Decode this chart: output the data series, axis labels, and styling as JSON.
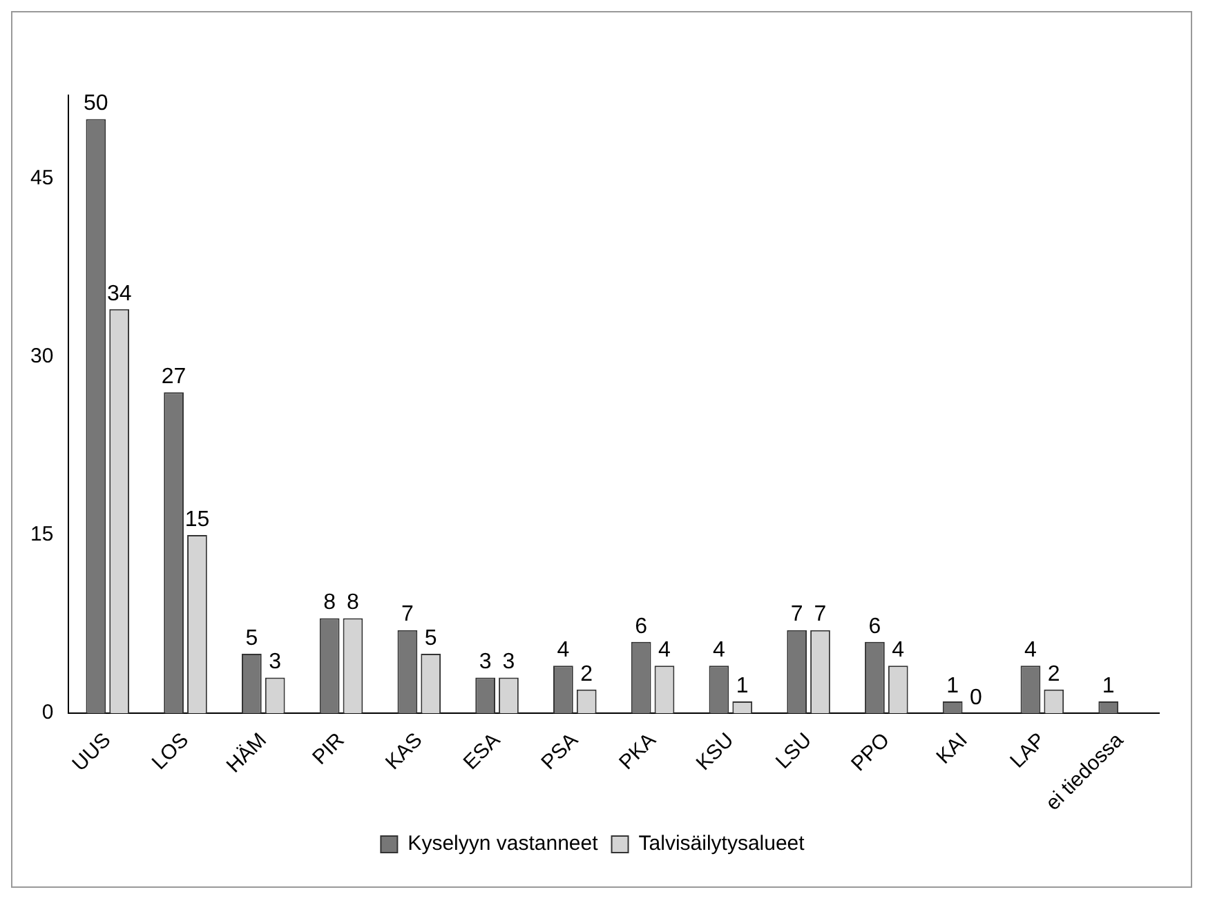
{
  "chart_data": {
    "type": "bar",
    "categories": [
      "UUS",
      "LOS",
      "HÄM",
      "PIR",
      "KAS",
      "ESA",
      "PSA",
      "PKA",
      "KSU",
      "LSU",
      "PPO",
      "KAI",
      "LAP",
      "ei tiedossa"
    ],
    "series": [
      {
        "name": "Kyselyyn vastanneet",
        "color": "#777777",
        "values": [
          50,
          27,
          5,
          8,
          7,
          3,
          4,
          6,
          4,
          7,
          6,
          1,
          4,
          1
        ]
      },
      {
        "name": "Talvisäilytysalueet",
        "color": "#d4d4d4",
        "values": [
          34,
          15,
          3,
          8,
          5,
          3,
          2,
          4,
          1,
          7,
          4,
          0,
          2,
          null
        ]
      }
    ],
    "ylim": [
      0,
      52
    ],
    "yticks": [
      0,
      15,
      30,
      45
    ],
    "grid": false,
    "legend": "bottom",
    "data_labels": true
  }
}
